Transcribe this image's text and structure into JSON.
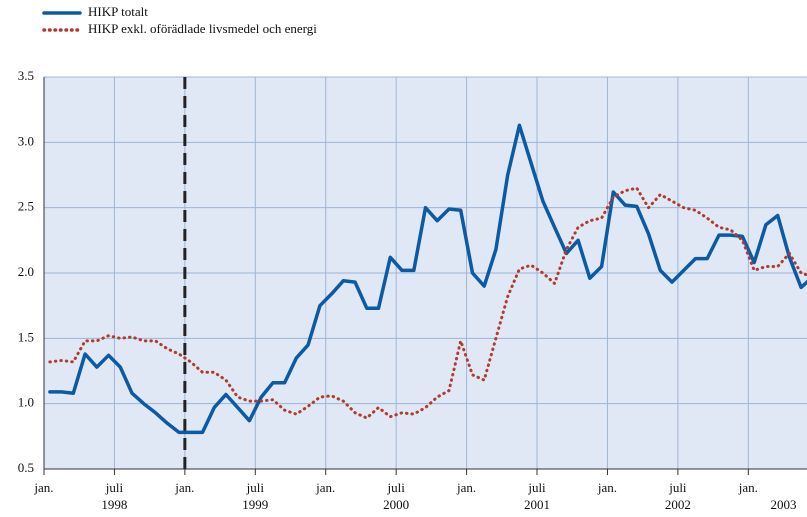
{
  "chart_data": {
    "type": "line",
    "x": [
      "1998-01",
      "1998-02",
      "1998-03",
      "1998-04",
      "1998-05",
      "1998-06",
      "1998-07",
      "1998-08",
      "1998-09",
      "1998-10",
      "1998-11",
      "1998-12",
      "1999-01",
      "1999-02",
      "1999-03",
      "1999-04",
      "1999-05",
      "1999-06",
      "1999-07",
      "1999-08",
      "1999-09",
      "1999-10",
      "1999-11",
      "1999-12",
      "2000-01",
      "2000-02",
      "2000-03",
      "2000-04",
      "2000-05",
      "2000-06",
      "2000-07",
      "2000-08",
      "2000-09",
      "2000-10",
      "2000-11",
      "2000-12",
      "2001-01",
      "2001-02",
      "2001-03",
      "2001-04",
      "2001-05",
      "2001-06",
      "2001-07",
      "2001-08",
      "2001-09",
      "2001-10",
      "2001-11",
      "2001-12",
      "2002-01",
      "2002-02",
      "2002-03",
      "2002-04",
      "2002-05",
      "2002-06",
      "2002-07",
      "2002-08",
      "2002-09",
      "2002-10",
      "2002-11",
      "2002-12",
      "2003-01",
      "2003-02",
      "2003-03",
      "2003-04",
      "2003-05",
      "2003-06"
    ],
    "series": [
      {
        "name": "HIKP totalt",
        "color": "#0b5aa6",
        "style": "solid",
        "values": [
          1.09,
          1.09,
          1.08,
          1.38,
          1.28,
          1.37,
          1.28,
          1.08,
          1.0,
          0.93,
          0.85,
          0.78,
          0.78,
          0.78,
          0.97,
          1.07,
          0.97,
          0.87,
          1.05,
          1.16,
          1.16,
          1.35,
          1.45,
          1.75,
          1.84,
          1.94,
          1.93,
          1.73,
          1.73,
          2.12,
          2.02,
          2.02,
          2.5,
          2.4,
          2.49,
          2.48,
          2.0,
          1.9,
          2.18,
          2.75,
          3.13,
          2.84,
          2.55,
          2.35,
          2.15,
          2.25,
          1.96,
          2.05,
          2.62,
          2.52,
          2.51,
          2.3,
          2.02,
          1.93,
          2.02,
          2.11,
          2.11,
          2.29,
          2.29,
          2.28,
          2.08,
          2.37,
          2.44,
          2.12,
          1.89,
          1.97
        ]
      },
      {
        "name": "HIKP exkl. oförädlade livsmedel och energi",
        "color": "#b23a2e",
        "style": "dotted",
        "values": [
          1.32,
          1.33,
          1.32,
          1.48,
          1.48,
          1.52,
          1.5,
          1.51,
          1.48,
          1.48,
          1.42,
          1.38,
          1.32,
          1.24,
          1.24,
          1.18,
          1.05,
          1.02,
          1.02,
          1.03,
          0.95,
          0.92,
          0.98,
          1.05,
          1.06,
          1.02,
          0.93,
          0.89,
          0.97,
          0.9,
          0.93,
          0.92,
          0.97,
          1.05,
          1.1,
          1.48,
          1.22,
          1.18,
          1.5,
          1.82,
          2.03,
          2.06,
          2.0,
          1.92,
          2.18,
          2.35,
          2.4,
          2.42,
          2.58,
          2.63,
          2.65,
          2.5,
          2.6,
          2.55,
          2.5,
          2.48,
          2.42,
          2.35,
          2.33,
          2.25,
          2.02,
          2.05,
          2.05,
          2.15,
          2.0,
          1.97
        ]
      }
    ],
    "xlim": [
      "1998-01",
      "2003-06"
    ],
    "ylim": [
      0.5,
      3.5
    ],
    "yticks": [
      0.5,
      {
        "value": 1.0,
        "label": "1.0"
      },
      1.5,
      {
        "value": 2.0,
        "label": "2.0"
      },
      2.5,
      {
        "value": 3.0,
        "label": "3.0"
      },
      3.5
    ],
    "xticks": [
      {
        "value": "1998-01",
        "label": "jan."
      },
      {
        "value": "1998-07",
        "label": "juli"
      },
      {
        "value": "1999-01",
        "label": "jan."
      },
      {
        "value": "1999-07",
        "label": "juli"
      },
      {
        "value": "2000-01",
        "label": "jan."
      },
      {
        "value": "2000-07",
        "label": "juli"
      },
      {
        "value": "2001-01",
        "label": "jan."
      },
      {
        "value": "2001-07",
        "label": "juli"
      },
      {
        "value": "2002-01",
        "label": "jan."
      },
      {
        "value": "2002-07",
        "label": "juli"
      },
      {
        "value": "2003-01",
        "label": "jan."
      }
    ],
    "xtick_years": [
      {
        "value": "1998-07",
        "label": "1998"
      },
      {
        "value": "1999-07",
        "label": "1999"
      },
      {
        "value": "2000-07",
        "label": "2000"
      },
      {
        "value": "2001-07",
        "label": "2001"
      },
      {
        "value": "2002-07",
        "label": "2002"
      },
      {
        "value": "2003-04",
        "label": "2003"
      }
    ],
    "vline": "1999-01",
    "grid": true,
    "legend": "top-left"
  }
}
